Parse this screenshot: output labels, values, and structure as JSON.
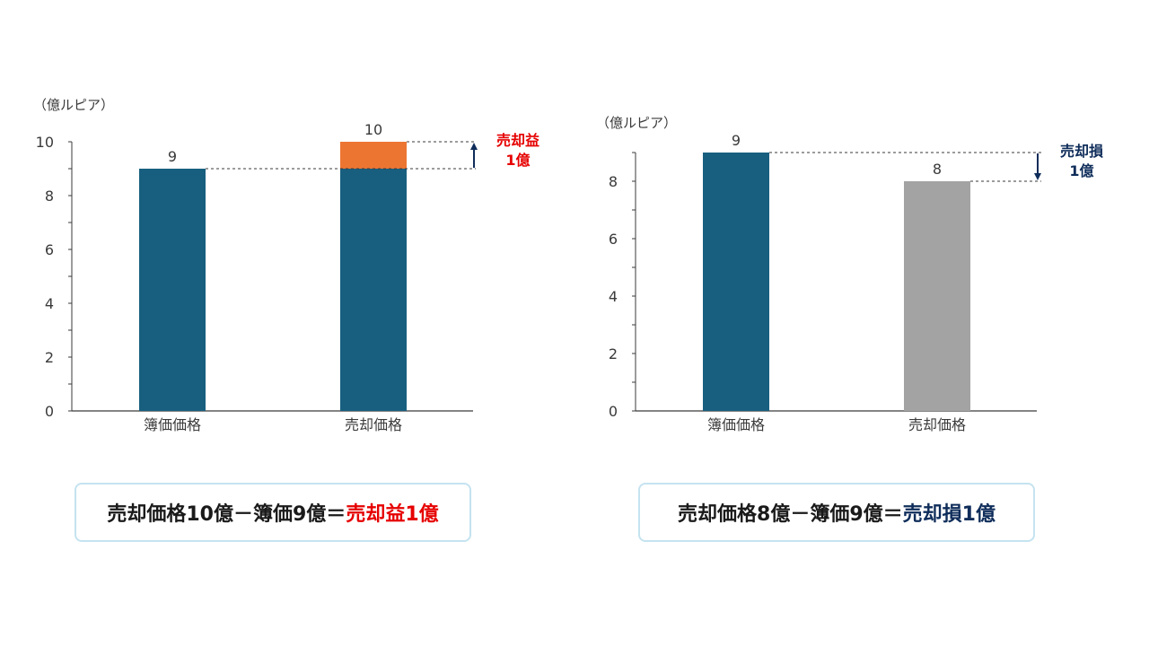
{
  "colors": {
    "teal": "#185f7f",
    "orange": "#ed7532",
    "gray": "#a3a3a3",
    "red": "#e60000",
    "navy": "#0f2d5a",
    "axis": "#3a3a3a",
    "text": "#3a3a3a"
  },
  "chart_data": [
    {
      "type": "bar",
      "stacked": true,
      "unit_label": "（億ルピア）",
      "categories": [
        "簿価価格",
        "売却価格"
      ],
      "series": [
        {
          "values": [
            9,
            9
          ],
          "color": "#185f7f"
        },
        {
          "values": [
            0,
            1
          ],
          "color": "#ed7532"
        }
      ],
      "data_labels": [
        "9",
        "10"
      ],
      "ylim": [
        0,
        10
      ],
      "yticks": [
        "0",
        "2",
        "4",
        "6",
        "8",
        "10"
      ],
      "grid": false,
      "annotation": {
        "lines": [
          "売却益",
          "1億"
        ],
        "color": "#e60000",
        "direction": "up",
        "from": 9,
        "to": 10
      }
    },
    {
      "type": "bar",
      "unit_label": "（億ルピア）",
      "categories": [
        "簿価価格",
        "売却価格"
      ],
      "values": [
        9,
        8
      ],
      "colors": [
        "#185f7f",
        "#a3a3a3"
      ],
      "data_labels": [
        "9",
        "8"
      ],
      "ylim": [
        0,
        9
      ],
      "yticks": [
        "0",
        "2",
        "4",
        "6",
        "8"
      ],
      "grid": false,
      "annotation": {
        "lines": [
          "売却損",
          "1億"
        ],
        "color": "#0f2d5a",
        "direction": "down",
        "from": 9,
        "to": 8
      }
    }
  ],
  "formulas": {
    "left": {
      "main": "売却価格10億－簿価9億＝",
      "result": "売却益1億",
      "result_color": "#e60000"
    },
    "right": {
      "main": "売却価格8億－簿価9億＝",
      "result": "売却損1億",
      "result_color": "#0f2d5a"
    }
  }
}
